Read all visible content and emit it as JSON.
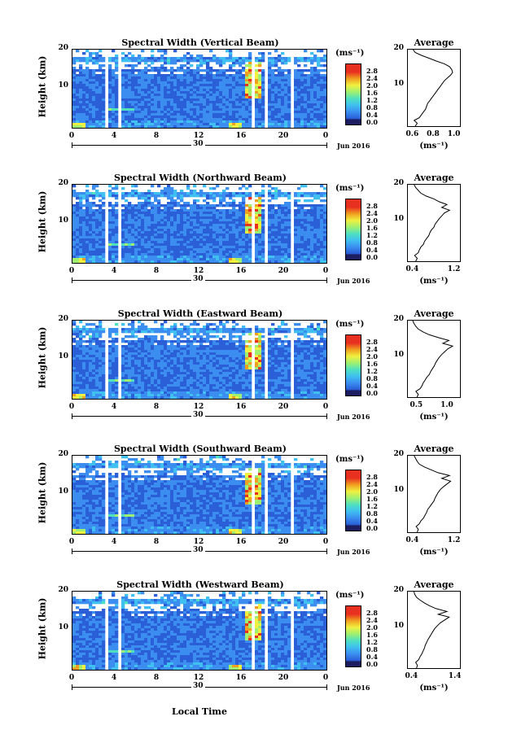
{
  "colorscale": [
    "#3a3aa8",
    "#2a5fd8",
    "#3b8ef0",
    "#3fc0f0",
    "#4fe0c0",
    "#9ff070",
    "#f0f040",
    "#f0a020",
    "#e83020"
  ],
  "chart_data": [
    {
      "type": "heatmap",
      "title": "Spectral Width (Vertical Beam)",
      "ylabel": "Height (km)",
      "yticks": [
        "20",
        "10"
      ],
      "xticks": [
        "0",
        "4",
        "8",
        "12",
        "16",
        "20",
        "0"
      ],
      "date_label": "30",
      "month_label": "Jun 2016",
      "colorbar_unit": "(ms⁻¹)",
      "colorbar_ticks": [
        "2.8",
        "2.4",
        "2.0",
        "1.6",
        "1.2",
        "0.8",
        "0.4",
        "0.0"
      ],
      "avg_title": "Average",
      "avg_xticks": [
        "0.6",
        "0.8",
        "1.0"
      ],
      "avg_xlim": [
        0.55,
        1.05
      ],
      "avg_unit": "(ms⁻¹)",
      "avg_yticks": [
        "20",
        "10"
      ],
      "avg_profile": [
        0.62,
        0.64,
        0.61,
        0.66,
        0.68,
        0.7,
        0.72,
        0.73,
        0.74,
        0.76,
        0.78,
        0.8,
        0.82,
        0.84,
        0.86,
        0.88,
        0.9,
        0.93,
        0.96,
        0.98,
        0.97,
        0.95,
        0.9,
        0.82,
        0.75,
        0.68,
        0.62,
        0.6
      ]
    },
    {
      "type": "heatmap",
      "title": "Spectral Width (Northward Beam)",
      "ylabel": "Height (km)",
      "yticks": [
        "20",
        "10"
      ],
      "xticks": [
        "0",
        "4",
        "8",
        "12",
        "16",
        "20",
        "0"
      ],
      "date_label": "30",
      "month_label": "Jun 2016",
      "colorbar_unit": "(ms⁻¹)",
      "colorbar_ticks": [
        "2.8",
        "2.4",
        "2.0",
        "1.6",
        "1.2",
        "0.8",
        "0.4",
        "0.0"
      ],
      "avg_title": "Average",
      "avg_xticks": [
        "0.4",
        "1.2"
      ],
      "avg_xlim": [
        0.3,
        1.3
      ],
      "avg_unit": "(ms⁻¹)",
      "avg_yticks": [
        "20",
        "10"
      ],
      "avg_profile": [
        0.45,
        0.48,
        0.43,
        0.5,
        0.52,
        0.55,
        0.6,
        0.62,
        0.66,
        0.7,
        0.72,
        0.75,
        0.8,
        0.82,
        0.86,
        0.9,
        0.95,
        1.0,
        1.1,
        0.95,
        1.05,
        0.9,
        0.8,
        0.65,
        0.55,
        0.5,
        0.45,
        0.42
      ]
    },
    {
      "type": "heatmap",
      "title": "Spectral Width (Eastward Beam)",
      "ylabel": "Height (km)",
      "yticks": [
        "20",
        "10"
      ],
      "xticks": [
        "0",
        "4",
        "8",
        "12",
        "16",
        "20",
        "0"
      ],
      "date_label": "30",
      "month_label": "Jun 2016",
      "colorbar_unit": "(ms⁻¹)",
      "colorbar_ticks": [
        "2.8",
        "2.4",
        "2.0",
        "1.6",
        "1.2",
        "0.8",
        "0.4",
        "0.0"
      ],
      "avg_title": "Average",
      "avg_xticks": [
        "0.5",
        "1.0"
      ],
      "avg_xlim": [
        0.35,
        1.2
      ],
      "avg_unit": "(ms⁻¹)",
      "avg_yticks": [
        "20",
        "10"
      ],
      "avg_profile": [
        0.5,
        0.52,
        0.48,
        0.55,
        0.58,
        0.6,
        0.63,
        0.66,
        0.7,
        0.72,
        0.75,
        0.78,
        0.8,
        0.83,
        0.86,
        0.9,
        0.95,
        1.0,
        1.08,
        0.92,
        1.02,
        0.85,
        0.7,
        0.6,
        0.52,
        0.48,
        0.45,
        0.43
      ]
    },
    {
      "type": "heatmap",
      "title": "Spectral Width (Southward Beam)",
      "ylabel": "Height (km)",
      "yticks": [
        "20",
        "10"
      ],
      "xticks": [
        "0",
        "4",
        "8",
        "12",
        "16",
        "20",
        "0"
      ],
      "date_label": "30",
      "month_label": "Jun 2016",
      "colorbar_unit": "(ms⁻¹)",
      "colorbar_ticks": [
        "2.8",
        "2.4",
        "2.0",
        "1.6",
        "1.2",
        "0.8",
        "0.4",
        "0.0"
      ],
      "avg_title": "Average",
      "avg_xticks": [
        "0.4",
        "1.2"
      ],
      "avg_xlim": [
        0.3,
        1.3
      ],
      "avg_unit": "(ms⁻¹)",
      "avg_yticks": [
        "20",
        "10"
      ],
      "avg_profile": [
        0.48,
        0.5,
        0.46,
        0.52,
        0.55,
        0.6,
        0.63,
        0.66,
        0.68,
        0.72,
        0.76,
        0.8,
        0.82,
        0.85,
        0.88,
        0.92,
        0.98,
        1.05,
        1.12,
        0.95,
        1.1,
        0.88,
        0.75,
        0.62,
        0.52,
        0.48,
        0.45,
        0.42
      ]
    },
    {
      "type": "heatmap",
      "title": "Spectral Width (Westward Beam)",
      "ylabel": "Height (km)",
      "yticks": [
        "20",
        "10"
      ],
      "xticks": [
        "0",
        "4",
        "8",
        "12",
        "16",
        "20",
        "0"
      ],
      "date_label": "30",
      "month_label": "Jun 2016",
      "colorbar_unit": "(ms⁻¹)",
      "colorbar_ticks": [
        "2.8",
        "2.4",
        "2.0",
        "1.6",
        "1.2",
        "0.8",
        "0.4",
        "0.0"
      ],
      "avg_title": "Average",
      "avg_xticks": [
        "0.4",
        "1.4"
      ],
      "avg_xlim": [
        0.3,
        1.5
      ],
      "avg_unit": "(ms⁻¹)",
      "avg_yticks": [
        "20",
        "10"
      ],
      "avg_profile": [
        0.5,
        0.52,
        0.48,
        0.55,
        0.58,
        0.62,
        0.65,
        0.68,
        0.7,
        0.73,
        0.76,
        0.8,
        0.84,
        0.88,
        0.92,
        0.98,
        1.05,
        1.15,
        1.25,
        1.0,
        1.2,
        0.95,
        0.8,
        0.68,
        0.58,
        0.5,
        0.46,
        0.44
      ]
    }
  ],
  "xlabel": "Local Time"
}
